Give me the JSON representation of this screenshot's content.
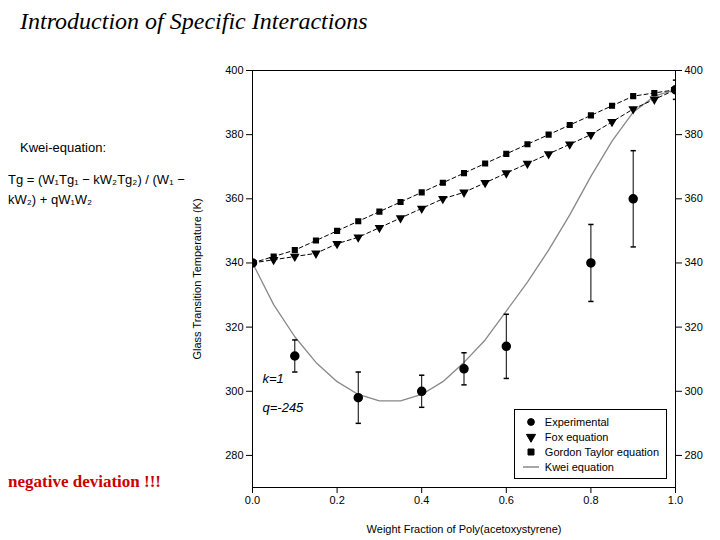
{
  "chart_data": {
    "type": "line",
    "title": "Introduction of Specific Interactions",
    "subtitle": "Kwei-equation:",
    "formula": "Tg = (W₁Tg₁ − kW₂Tg₂) / (W₁ − kW₂) + qW₁W₂",
    "annotations": [
      {
        "text": "k=1"
      },
      {
        "text": "q=-245"
      }
    ],
    "caption": {
      "text": "negative deviation !!!",
      "color": "#cc0000"
    },
    "x_label": "Weight Fraction of Poly(acetoxystyrene)",
    "y_label": "Glass Transition Temperature (K)",
    "xlim": [
      0.0,
      1.0
    ],
    "xticks": [
      {
        "value": 0,
        "label": "0.0"
      },
      0.2,
      0.4,
      0.6,
      0.8,
      {
        "value": 1,
        "label": "1.0"
      }
    ],
    "ylim": [
      270,
      400
    ],
    "yticks": [
      280,
      300,
      320,
      340,
      360,
      380,
      400
    ],
    "grid": false,
    "legend": "lower right",
    "series": [
      {
        "name": "Experimental",
        "type": "scatter",
        "marker": "circle",
        "color": "#000000",
        "x": [
          0.0,
          0.1,
          0.25,
          0.4,
          0.5,
          0.6,
          0.8,
          0.9,
          1.0
        ],
        "values": [
          340,
          311,
          298,
          300,
          307,
          314,
          340,
          360,
          394
        ],
        "errors": [
          0,
          5,
          8,
          5,
          5,
          10,
          12,
          15,
          3
        ]
      },
      {
        "name": "Fox equation",
        "type": "line",
        "marker": "triangle-down",
        "line_style": "dashed",
        "color": "#000000",
        "x": [
          0.0,
          0.05,
          0.1,
          0.15,
          0.2,
          0.25,
          0.3,
          0.35,
          0.4,
          0.45,
          0.5,
          0.55,
          0.6,
          0.65,
          0.7,
          0.75,
          0.8,
          0.85,
          0.9,
          0.95,
          1.0
        ],
        "values": [
          340,
          341,
          342,
          343,
          346,
          348,
          351,
          354,
          357,
          360,
          362,
          365,
          368,
          371,
          374,
          377,
          380,
          384,
          388,
          391,
          394
        ]
      },
      {
        "name": "Gordon Taylor equation",
        "type": "line",
        "marker": "square",
        "line_style": "dashed",
        "color": "#000000",
        "x": [
          0.0,
          0.05,
          0.1,
          0.15,
          0.2,
          0.25,
          0.3,
          0.35,
          0.4,
          0.45,
          0.5,
          0.55,
          0.6,
          0.65,
          0.7,
          0.75,
          0.8,
          0.85,
          0.9,
          0.95,
          1.0
        ],
        "values": [
          340,
          342,
          344,
          347,
          350,
          353,
          356,
          359,
          362,
          365,
          368,
          371,
          374,
          377,
          380,
          383,
          386,
          389,
          392,
          393,
          394
        ]
      },
      {
        "name": "Kwei equation",
        "type": "line",
        "line_style": "solid",
        "color": "#888888",
        "x": [
          0.0,
          0.05,
          0.1,
          0.15,
          0.2,
          0.25,
          0.3,
          0.35,
          0.4,
          0.45,
          0.5,
          0.55,
          0.6,
          0.65,
          0.7,
          0.75,
          0.8,
          0.85,
          0.9,
          0.95,
          1.0
        ],
        "values": [
          340,
          327,
          317,
          309,
          303,
          299,
          297,
          297,
          299,
          303,
          309,
          316,
          325,
          334,
          344,
          355,
          367,
          378,
          387,
          392,
          394
        ]
      }
    ]
  }
}
